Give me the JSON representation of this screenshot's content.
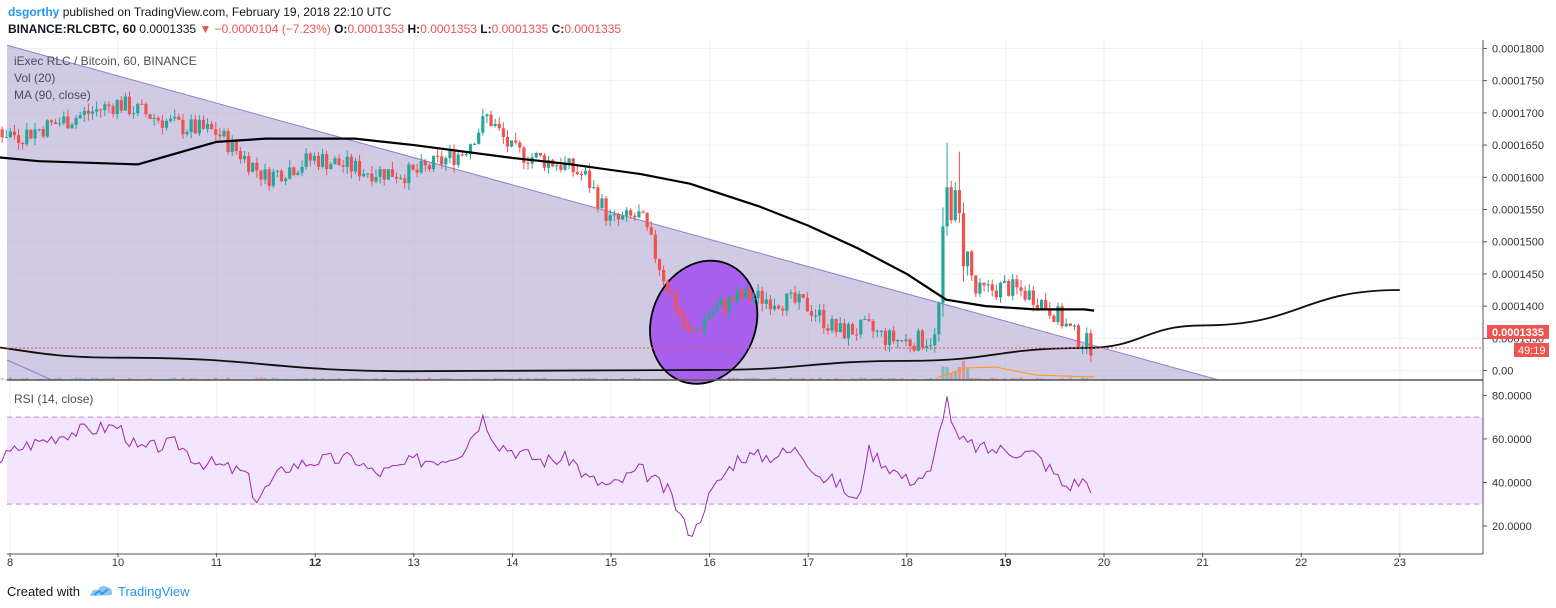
{
  "header": {
    "user": "dsgorthy",
    "published": "published on TradingView.com, February 19, 2018 22:10 UTC",
    "symbol_line": "BINANCE:RLCBTC, 60",
    "last": "0.0001335",
    "change": "▼ −0.0000104 (−7.23%)",
    "o_label": "O:",
    "o": "0.0001353",
    "h_label": "H:",
    "h": "0.0001353",
    "l_label": "L:",
    "l": "0.0001335",
    "c_label": "C:",
    "c": "0.0001335"
  },
  "legend": {
    "series": "iExec RLC / Bitcoin, 60, BINANCE",
    "vol": "Vol (20)",
    "ma": "MA (90, close)",
    "rsi": "RSI (14, close)"
  },
  "price_axis": {
    "ticks": [
      "0.0001800",
      "0.0001750",
      "0.0001700",
      "0.0001650",
      "0.0001600",
      "0.0001550",
      "0.0001500",
      "0.0001450",
      "0.0001400",
      "0.0001350",
      "0.00"
    ],
    "last_price_label": "0.0001335",
    "countdown_label": "49:19"
  },
  "rsi_axis": {
    "ticks": [
      "80.0000",
      "60.0000",
      "40.0000",
      "20.0000"
    ]
  },
  "time_axis": {
    "labels": [
      "8",
      "10",
      "11",
      "12",
      "13",
      "14",
      "15",
      "16",
      "17",
      "18",
      "19",
      "20",
      "21",
      "22",
      "23"
    ],
    "bold": [
      "12",
      "19"
    ]
  },
  "colors": {
    "up": "#26a69a",
    "down": "#ef5350",
    "triangle_fill": "#b8aed6",
    "triangle_line": "#8f7fc8",
    "ellipse_fill": "#a24cf0",
    "rsi_line": "#9c27b0",
    "rsi_band": "#f3e5fd",
    "last_price": "#ef5350",
    "ma_line": "#000000"
  },
  "chart_data": {
    "type": "candlestick",
    "title": "iExec RLC / Bitcoin, 60, BINANCE",
    "x_range": [
      "Feb 8 2018",
      "Feb 23 2018"
    ],
    "price_range": [
      0.000129,
      0.000181
    ],
    "last_price": 0.0001335,
    "close_path": [
      {
        "day": 8.0,
        "close": 0.00017
      },
      {
        "day": 9.0,
        "close": 0.0001665
      },
      {
        "day": 10.0,
        "close": 0.0001715
      },
      {
        "day": 10.6,
        "close": 0.000168
      },
      {
        "day": 11.0,
        "close": 0.000167
      },
      {
        "day": 11.5,
        "close": 0.00016
      },
      {
        "day": 12.0,
        "close": 0.000163
      },
      {
        "day": 12.5,
        "close": 0.000161
      },
      {
        "day": 13.0,
        "close": 0.0001605
      },
      {
        "day": 13.5,
        "close": 0.000164
      },
      {
        "day": 13.75,
        "close": 0.0001695
      },
      {
        "day": 14.0,
        "close": 0.000164
      },
      {
        "day": 14.5,
        "close": 0.000162
      },
      {
        "day": 14.75,
        "close": 0.00016
      },
      {
        "day": 15.0,
        "close": 0.000153
      },
      {
        "day": 15.3,
        "close": 0.000154
      },
      {
        "day": 15.6,
        "close": 0.000142
      },
      {
        "day": 15.8,
        "close": 0.000135
      },
      {
        "day": 16.0,
        "close": 0.000139
      },
      {
        "day": 16.3,
        "close": 0.0001415
      },
      {
        "day": 16.7,
        "close": 0.000141
      },
      {
        "day": 17.0,
        "close": 0.00014
      },
      {
        "day": 17.3,
        "close": 0.000136
      },
      {
        "day": 17.6,
        "close": 0.0001365
      },
      {
        "day": 17.8,
        "close": 0.000135
      },
      {
        "day": 18.0,
        "close": 0.0001345
      },
      {
        "day": 18.3,
        "close": 0.000135
      },
      {
        "day": 18.42,
        "close": 0.000159
      },
      {
        "day": 18.55,
        "close": 0.000151
      },
      {
        "day": 18.7,
        "close": 0.000142
      },
      {
        "day": 19.0,
        "close": 0.000143
      },
      {
        "day": 19.3,
        "close": 0.0001415
      },
      {
        "day": 19.5,
        "close": 0.000139
      },
      {
        "day": 19.7,
        "close": 0.0001355
      },
      {
        "day": 19.9,
        "close": 0.0001335
      }
    ],
    "ma90": [
      {
        "day": 7.95,
        "value": 0.000167
      },
      {
        "day": 8.5,
        "value": 0.0001635
      },
      {
        "day": 9.2,
        "value": 0.0001625
      },
      {
        "day": 10.2,
        "value": 0.000162
      },
      {
        "day": 11.0,
        "value": 0.0001655
      },
      {
        "day": 11.5,
        "value": 0.000166
      },
      {
        "day": 12.4,
        "value": 0.000166
      },
      {
        "day": 13.0,
        "value": 0.000165
      },
      {
        "day": 14.0,
        "value": 0.000163
      },
      {
        "day": 14.6,
        "value": 0.000162
      },
      {
        "day": 15.3,
        "value": 0.0001605
      },
      {
        "day": 15.8,
        "value": 0.000159
      },
      {
        "day": 16.5,
        "value": 0.0001555
      },
      {
        "day": 17.0,
        "value": 0.0001525
      },
      {
        "day": 17.5,
        "value": 0.000149
      },
      {
        "day": 18.0,
        "value": 0.000145
      },
      {
        "day": 18.4,
        "value": 0.000141
      },
      {
        "day": 18.8,
        "value": 0.00014
      },
      {
        "day": 19.3,
        "value": 0.0001395
      },
      {
        "day": 19.8,
        "value": 0.0001395
      },
      {
        "day": 19.9,
        "value": 0.0001393
      }
    ],
    "rsi_series": [
      {
        "day": 7.95,
        "rsi": 58.0
      },
      {
        "day": 8.4,
        "rsi": 58.0
      },
      {
        "day": 8.6,
        "rsi": 45.0
      },
      {
        "day": 9.0,
        "rsi": 56.0
      },
      {
        "day": 9.5,
        "rsi": 63.0
      },
      {
        "day": 10.0,
        "rsi": 66.0
      },
      {
        "day": 10.2,
        "rsi": 55.0
      },
      {
        "day": 10.6,
        "rsi": 58.0
      },
      {
        "day": 10.8,
        "rsi": 50.0
      },
      {
        "day": 11.0,
        "rsi": 48.0
      },
      {
        "day": 11.3,
        "rsi": 44.0
      },
      {
        "day": 11.4,
        "rsi": 32.0
      },
      {
        "day": 11.7,
        "rsi": 47.0
      },
      {
        "day": 12.0,
        "rsi": 50.0
      },
      {
        "day": 12.4,
        "rsi": 51.0
      },
      {
        "day": 12.6,
        "rsi": 44.0
      },
      {
        "day": 12.8,
        "rsi": 46.0
      },
      {
        "day": 13.0,
        "rsi": 50.0
      },
      {
        "day": 13.3,
        "rsi": 51.0
      },
      {
        "day": 13.5,
        "rsi": 55.0
      },
      {
        "day": 13.7,
        "rsi": 70.0
      },
      {
        "day": 13.85,
        "rsi": 58.0
      },
      {
        "day": 14.0,
        "rsi": 55.0
      },
      {
        "day": 14.3,
        "rsi": 50.0
      },
      {
        "day": 14.6,
        "rsi": 51.0
      },
      {
        "day": 14.75,
        "rsi": 42.0
      },
      {
        "day": 15.0,
        "rsi": 38.0
      },
      {
        "day": 15.3,
        "rsi": 46.0
      },
      {
        "day": 15.6,
        "rsi": 35.0
      },
      {
        "day": 15.75,
        "rsi": 20.0
      },
      {
        "day": 15.85,
        "rsi": 17.0
      },
      {
        "day": 15.95,
        "rsi": 30.0
      },
      {
        "day": 16.1,
        "rsi": 41.0
      },
      {
        "day": 16.3,
        "rsi": 52.0
      },
      {
        "day": 16.6,
        "rsi": 52.0
      },
      {
        "day": 16.9,
        "rsi": 55.0
      },
      {
        "day": 17.15,
        "rsi": 42.0
      },
      {
        "day": 17.3,
        "rsi": 40.0
      },
      {
        "day": 17.5,
        "rsi": 30.0
      },
      {
        "day": 17.6,
        "rsi": 55.0
      },
      {
        "day": 17.8,
        "rsi": 48.0
      },
      {
        "day": 18.0,
        "rsi": 41.0
      },
      {
        "day": 18.25,
        "rsi": 44.0
      },
      {
        "day": 18.4,
        "rsi": 80.0
      },
      {
        "day": 18.5,
        "rsi": 60.0
      },
      {
        "day": 18.6,
        "rsi": 58.0
      },
      {
        "day": 18.8,
        "rsi": 55.0
      },
      {
        "day": 19.0,
        "rsi": 55.0
      },
      {
        "day": 19.3,
        "rsi": 53.0
      },
      {
        "day": 19.5,
        "rsi": 44.0
      },
      {
        "day": 19.6,
        "rsi": 38.0
      },
      {
        "day": 19.8,
        "rsi": 41.0
      },
      {
        "day": 19.9,
        "rsi": 37.0
      }
    ],
    "drawings": {
      "triangle_top": [
        {
          "day": 7.95,
          "price": 0.0001805
        },
        {
          "day": 19.9,
          "price": 0.0001335
        }
      ],
      "triangle_bottom": [
        {
          "day": 7.95,
          "price": 0.000129
        },
        {
          "day": 18.8,
          "price": 0.000129
        }
      ],
      "curve": [
        {
          "day": 7.95,
          "price": 0.0001344
        },
        {
          "day": 10.0,
          "price": 0.000132
        },
        {
          "day": 13.0,
          "price": 0.0001299
        },
        {
          "day": 16.0,
          "price": 0.0001301
        },
        {
          "day": 18.0,
          "price": 0.0001315
        },
        {
          "day": 19.8,
          "price": 0.0001335
        },
        {
          "day": 21.0,
          "price": 0.000137
        },
        {
          "day": 23.0,
          "price": 0.0001425
        }
      ],
      "ellipse_center": {
        "day": 15.95,
        "price": 0.0001375
      }
    },
    "rsi_bands": [
      30,
      70
    ],
    "rsi_range": [
      14,
      82
    ]
  }
}
